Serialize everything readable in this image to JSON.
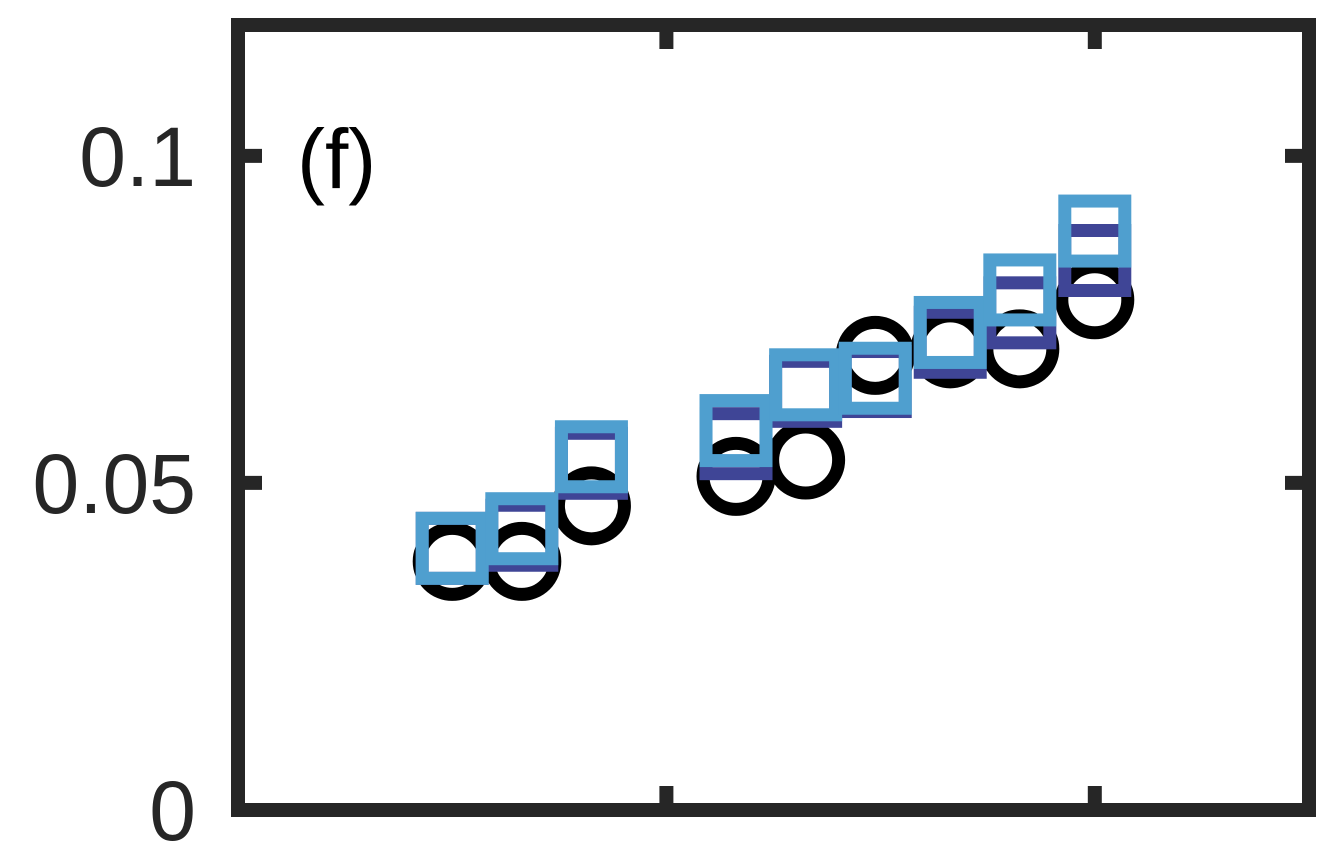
{
  "chart_data": {
    "type": "scatter",
    "panel_label": "(f)",
    "title": "",
    "xlabel": "",
    "ylabel": "",
    "xlim": [
      0,
      1
    ],
    "ylim": [
      0,
      0.12
    ],
    "yticks": [
      0,
      0.05,
      0.1
    ],
    "ytick_labels": [
      "0",
      "0.05",
      "0.1"
    ],
    "xticks": [
      0.4,
      0.8
    ],
    "xtick_labels": [],
    "grid": false,
    "legend": null,
    "series": [
      {
        "marker": "circle",
        "color": "#000000",
        "points": [
          {
            "x": 0.2,
            "y": 0.038
          },
          {
            "x": 0.265,
            "y": 0.038
          },
          {
            "x": 0.33,
            "y": 0.0465
          },
          {
            "x": 0.465,
            "y": 0.051
          },
          {
            "x": 0.53,
            "y": 0.0535
          },
          {
            "x": 0.595,
            "y": 0.0695
          },
          {
            "x": 0.665,
            "y": 0.0705
          },
          {
            "x": 0.73,
            "y": 0.0705
          },
          {
            "x": 0.8,
            "y": 0.078
          }
        ]
      },
      {
        "marker": "square",
        "color": "#3f4596",
        "points": [
          {
            "x": 0.2,
            "y": 0.04
          },
          {
            "x": 0.265,
            "y": 0.042
          },
          {
            "x": 0.33,
            "y": 0.053
          },
          {
            "x": 0.465,
            "y": 0.056
          },
          {
            "x": 0.53,
            "y": 0.064
          },
          {
            "x": 0.595,
            "y": 0.0655
          },
          {
            "x": 0.665,
            "y": 0.0715
          },
          {
            "x": 0.73,
            "y": 0.076
          },
          {
            "x": 0.8,
            "y": 0.084
          }
        ]
      },
      {
        "marker": "square",
        "color": "#4f9fcf",
        "points": [
          {
            "x": 0.2,
            "y": 0.04
          },
          {
            "x": 0.265,
            "y": 0.043
          },
          {
            "x": 0.33,
            "y": 0.054
          },
          {
            "x": 0.465,
            "y": 0.058
          },
          {
            "x": 0.53,
            "y": 0.065
          },
          {
            "x": 0.595,
            "y": 0.066
          },
          {
            "x": 0.665,
            "y": 0.073
          },
          {
            "x": 0.73,
            "y": 0.0795
          },
          {
            "x": 0.8,
            "y": 0.0885
          }
        ]
      }
    ]
  }
}
